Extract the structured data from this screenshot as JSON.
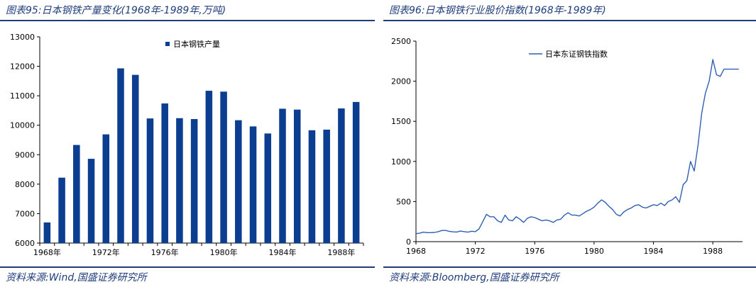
{
  "left": {
    "title": "图表95:日本钢铁产量变化(1968年-1989年,万吨)",
    "source": "资料来源:Wind,国盛证券研究所"
  },
  "right": {
    "title": "图表96:日本钢铁行业股价指数(1968年-1989年)",
    "source": "资料来源:Bloomberg,国盛证券研究所"
  },
  "colors": {
    "bar": "#0b3d91",
    "line": "#2f5fb3",
    "header": "#1f3d7a"
  },
  "chart_data": [
    {
      "type": "bar",
      "legend": [
        "日本钢铁产量"
      ],
      "legend_position": "top",
      "categories": [
        "1968年",
        "1969年",
        "1970年",
        "1971年",
        "1972年",
        "1973年",
        "1974年",
        "1975年",
        "1976年",
        "1977年",
        "1978年",
        "1979年",
        "1980年",
        "1981年",
        "1982年",
        "1983年",
        "1984年",
        "1985年",
        "1986年",
        "1987年",
        "1988年",
        "1989年"
      ],
      "x_tick_labels": [
        "1968年",
        "1972年",
        "1976年",
        "1980年",
        "1984年",
        "1988年"
      ],
      "series": [
        {
          "name": "日本钢铁产量",
          "values": [
            6700,
            8220,
            9330,
            8860,
            9690,
            11930,
            11710,
            10230,
            10740,
            10240,
            10210,
            11170,
            11140,
            10170,
            9960,
            9720,
            10560,
            10530,
            9830,
            9850,
            10570,
            10790
          ]
        }
      ],
      "ylim": [
        6000,
        13000
      ],
      "y_ticks": [
        6000,
        7000,
        8000,
        9000,
        10000,
        11000,
        12000,
        13000
      ],
      "grid": false
    },
    {
      "type": "line",
      "legend": [
        "日本东证钢铁指数"
      ],
      "legend_position": "top-left",
      "xlim": [
        1968,
        1990
      ],
      "x_ticks": [
        1968,
        1972,
        1976,
        1980,
        1984,
        1988
      ],
      "ylim": [
        0,
        2500
      ],
      "y_ticks": [
        0,
        500,
        1000,
        1500,
        2000,
        2500
      ],
      "grid": false,
      "series": [
        {
          "name": "日本东证钢铁指数",
          "x": [
            1968.0,
            1968.25,
            1968.5,
            1968.75,
            1969.0,
            1969.25,
            1969.5,
            1969.75,
            1970.0,
            1970.25,
            1970.5,
            1970.75,
            1971.0,
            1971.25,
            1971.5,
            1971.75,
            1972.0,
            1972.25,
            1972.5,
            1972.75,
            1973.0,
            1973.25,
            1973.5,
            1973.75,
            1974.0,
            1974.25,
            1974.5,
            1974.75,
            1975.0,
            1975.25,
            1975.5,
            1975.75,
            1976.0,
            1976.25,
            1976.5,
            1976.75,
            1977.0,
            1977.25,
            1977.5,
            1977.75,
            1978.0,
            1978.25,
            1978.5,
            1978.75,
            1979.0,
            1979.25,
            1979.5,
            1979.75,
            1980.0,
            1980.25,
            1980.5,
            1980.75,
            1981.0,
            1981.25,
            1981.5,
            1981.75,
            1982.0,
            1982.25,
            1982.5,
            1982.75,
            1983.0,
            1983.25,
            1983.5,
            1983.75,
            1984.0,
            1984.25,
            1984.5,
            1984.75,
            1985.0,
            1985.25,
            1985.5,
            1985.75,
            1986.0,
            1986.25,
            1986.5,
            1986.75,
            1987.0,
            1987.25,
            1987.5,
            1987.75,
            1988.0,
            1988.25,
            1988.5,
            1988.75,
            1989.0,
            1989.25,
            1989.5,
            1989.75
          ],
          "values": [
            100,
            105,
            118,
            112,
            112,
            115,
            125,
            140,
            140,
            128,
            122,
            120,
            132,
            125,
            118,
            130,
            125,
            160,
            250,
            340,
            310,
            310,
            260,
            240,
            330,
            270,
            260,
            310,
            280,
            240,
            290,
            310,
            300,
            280,
            260,
            270,
            260,
            240,
            270,
            280,
            330,
            360,
            330,
            330,
            320,
            350,
            380,
            400,
            430,
            480,
            520,
            490,
            440,
            400,
            340,
            320,
            370,
            400,
            420,
            450,
            460,
            430,
            420,
            440,
            460,
            450,
            480,
            450,
            500,
            520,
            560,
            490,
            710,
            760,
            1000,
            880,
            1200,
            1600,
            1850,
            2000,
            2270,
            2080,
            2060,
            2150,
            2150,
            2150,
            2150,
            2150
          ]
        }
      ]
    }
  ]
}
